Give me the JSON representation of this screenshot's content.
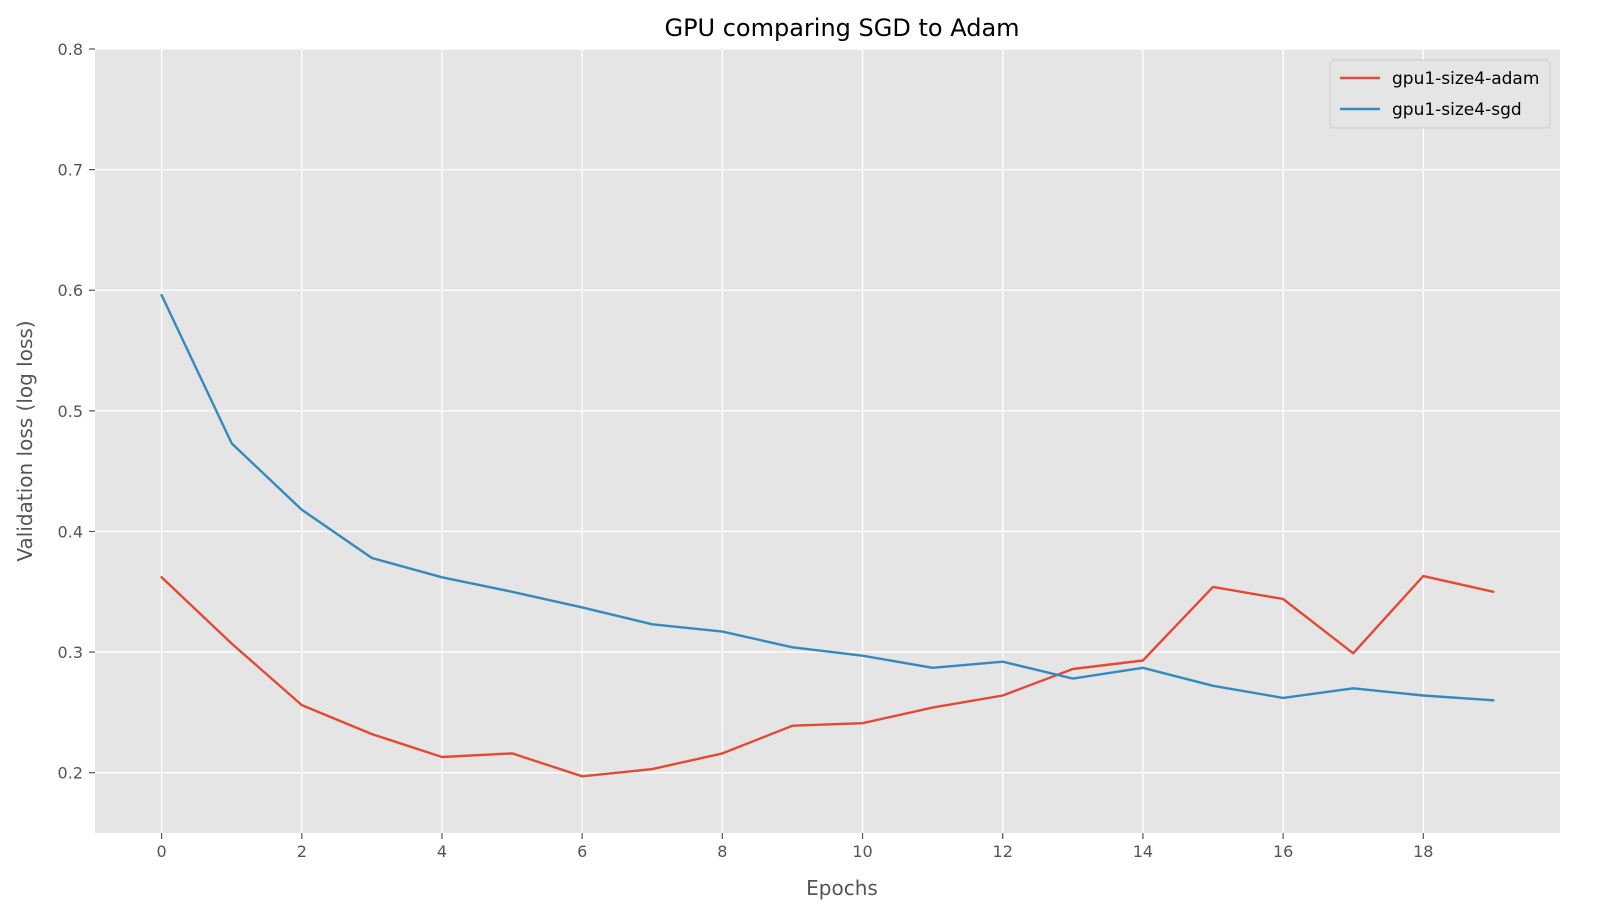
{
  "chart_data": {
    "type": "line",
    "title": "GPU comparing SGD to Adam",
    "xlabel": "Epochs",
    "ylabel": "Validation loss (log loss)",
    "xlim": [
      -0.95,
      19.95
    ],
    "ylim": [
      0.15,
      0.8
    ],
    "xticks": [
      0,
      2,
      4,
      6,
      8,
      10,
      12,
      14,
      16,
      18
    ],
    "yticks": [
      0.2,
      0.3,
      0.4,
      0.5,
      0.6,
      0.7,
      0.8
    ],
    "grid": true,
    "legend_position": "top-right",
    "x": [
      0,
      1,
      2,
      3,
      4,
      5,
      6,
      7,
      8,
      9,
      10,
      11,
      12,
      13,
      14,
      15,
      16,
      17,
      18,
      19
    ],
    "series": [
      {
        "name": "gpu1-size4-adam",
        "color": "#E24A33",
        "values": [
          0.362,
          0.307,
          0.256,
          0.232,
          0.213,
          0.216,
          0.197,
          0.203,
          0.216,
          0.239,
          0.241,
          0.254,
          0.264,
          0.286,
          0.293,
          0.354,
          0.344,
          0.299,
          0.363,
          0.35
        ]
      },
      {
        "name": "gpu1-size4-sgd",
        "color": "#348ABD",
        "values": [
          0.596,
          0.473,
          0.418,
          0.378,
          0.362,
          0.35,
          0.337,
          0.323,
          0.317,
          0.304,
          0.297,
          0.287,
          0.292,
          0.278,
          0.287,
          0.272,
          0.262,
          0.27,
          0.264,
          0.26
        ]
      }
    ],
    "plot_background": "#E5E5E5",
    "grid_color": "#FFFFFF"
  }
}
